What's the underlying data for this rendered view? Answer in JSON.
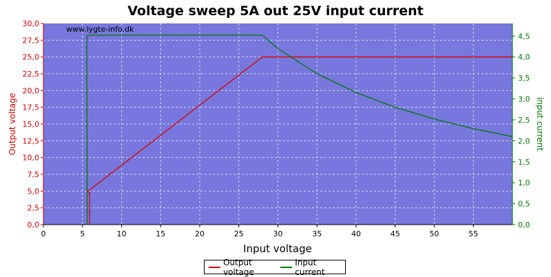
{
  "chart_data": {
    "type": "line",
    "title": "Voltage sweep 5A out 25V input current",
    "watermark": "www.lygte-info.dk",
    "xlabel": "Input voltage",
    "ylabel": "Output voltage",
    "y2label": "input current",
    "xlim": [
      0,
      60
    ],
    "ylim": [
      0,
      30
    ],
    "y2lim": [
      0,
      4.8
    ],
    "x_ticks": [
      "0",
      "5",
      "10",
      "15",
      "20",
      "25",
      "30",
      "35",
      "40",
      "45",
      "50",
      "55"
    ],
    "y_ticks": [
      "0,0",
      "2,5",
      "5,0",
      "7,5",
      "10,0",
      "12,5",
      "15,0",
      "17,5",
      "20,0",
      "22,5",
      "25,0",
      "27,5",
      "30,0"
    ],
    "y2_ticks": [
      "0,0",
      "0,5",
      "1,0",
      "1,5",
      "2,0",
      "2,5",
      "3,0",
      "3,5",
      "4,0",
      "4,5"
    ],
    "grid": true,
    "legend_position": "bottom-center",
    "colors": {
      "plot_bg": "#7777dd",
      "output_voltage": "#dd0000",
      "input_current": "#007700",
      "left_axis": "#cc0000",
      "right_axis": "#007700",
      "grid": "#ffffff"
    },
    "series": [
      {
        "name": "Output voltage",
        "axis": "left",
        "x": [
          5.9,
          5.9,
          5.9,
          5.6,
          28.0,
          60.0
        ],
        "y": [
          0.0,
          4.8,
          4.8,
          4.9,
          25.0,
          25.0
        ]
      },
      {
        "name": "Input current",
        "axis": "right",
        "x": [
          5.6,
          5.55,
          5.7,
          10.0,
          28.0,
          30.0,
          35.0,
          40.0,
          45.0,
          50.0,
          55.0,
          60.0
        ],
        "y": [
          0.0,
          4.45,
          4.52,
          4.52,
          4.52,
          4.2,
          3.6,
          3.15,
          2.8,
          2.52,
          2.29,
          2.1
        ]
      }
    ]
  }
}
